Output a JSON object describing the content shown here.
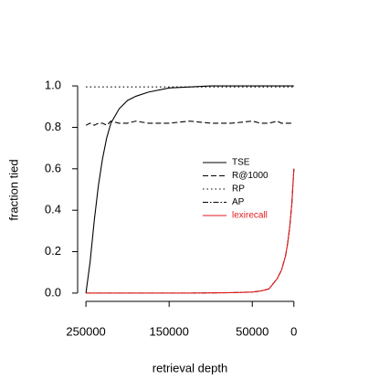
{
  "chart_data": {
    "type": "line",
    "xlabel": "retrieval depth",
    "ylabel": "fraction tied",
    "x": [
      250000,
      245000,
      240000,
      235000,
      230000,
      225000,
      220000,
      210000,
      200000,
      190000,
      175000,
      150000,
      125000,
      100000,
      75000,
      50000,
      40000,
      30000,
      20000,
      15000,
      10000,
      7500,
      5000,
      2500,
      0
    ],
    "series": [
      {
        "name": "TSE",
        "color": "#000000",
        "linestyle": "solid",
        "values": [
          0,
          0.15,
          0.35,
          0.52,
          0.65,
          0.75,
          0.82,
          0.89,
          0.93,
          0.95,
          0.97,
          0.99,
          0.995,
          1.0,
          1.0,
          1.0,
          1.0,
          1.0,
          1.0,
          1.0,
          1.0,
          1.0,
          1.0,
          1.0,
          1.0
        ]
      },
      {
        "name": "R@1000",
        "color": "#000000",
        "linestyle": "dashed",
        "values": [
          0.81,
          0.82,
          0.81,
          0.82,
          0.82,
          0.81,
          0.83,
          0.82,
          0.82,
          0.83,
          0.82,
          0.82,
          0.83,
          0.82,
          0.82,
          0.83,
          0.82,
          0.82,
          0.83,
          0.82,
          0.82,
          0.82,
          0.82,
          0.82,
          0.82
        ]
      },
      {
        "name": "RP",
        "color": "#000000",
        "linestyle": "dotted",
        "values": [
          0.995,
          0.995,
          0.995,
          0.995,
          0.995,
          0.995,
          0.995,
          0.995,
          0.995,
          0.995,
          0.995,
          0.995,
          0.995,
          0.995,
          0.995,
          0.995,
          0.995,
          0.995,
          0.995,
          0.995,
          0.995,
          0.995,
          0.995,
          0.995,
          0.995
        ]
      },
      {
        "name": "AP",
        "color": "#000000",
        "linestyle": "dashdot",
        "values": [
          0,
          0,
          0,
          0,
          0,
          0,
          0,
          0,
          0,
          0,
          0,
          0,
          0,
          0.001,
          0.002,
          0.005,
          0.01,
          0.02,
          0.07,
          0.11,
          0.18,
          0.24,
          0.32,
          0.43,
          0.6
        ]
      },
      {
        "name": "lexirecall",
        "color": "#e31a1c",
        "linestyle": "solid",
        "values": [
          0,
          0,
          0,
          0,
          0,
          0,
          0,
          0,
          0,
          0,
          0,
          0,
          0,
          0.001,
          0.002,
          0.005,
          0.01,
          0.02,
          0.07,
          0.11,
          0.18,
          0.24,
          0.32,
          0.43,
          0.6
        ]
      }
    ],
    "xlim": [
      260000,
      -9000
    ],
    "ylim": [
      -0.04,
      1.04
    ],
    "xticks": [
      250000,
      150000,
      50000,
      0
    ],
    "yticks": [
      {
        "value": 0,
        "label": "0.0"
      },
      0.2,
      0.4,
      0.6,
      0.8,
      {
        "value": 1,
        "label": "1.0"
      }
    ],
    "legend": "right"
  }
}
